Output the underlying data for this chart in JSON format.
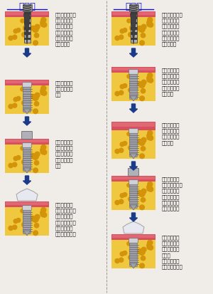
{
  "title_left": "１回法",
  "title_right": "２回法",
  "bg_color": "#f0ede8",
  "divider_color": "#999999",
  "title_color": "#1111cc",
  "arrow_color": "#1a3a8a",
  "bone_color": "#f0c840",
  "bone_spot_color": "#d4940a",
  "gum_color": "#d85060",
  "gum_top_color": "#e87880",
  "gum_bottom_color": "#c04050",
  "implant_color_mid": "#a0a0a8",
  "implant_color_light": "#d0d0d8",
  "implant_color_dark": "#707078",
  "drill_dark": "#404040",
  "drill_light": "#b0b0b0",
  "drill_top": "#888888",
  "cap_color": "#b0b0b8",
  "crown_color": "#e8e8f0",
  "crown_outline": "#aaaaaa",
  "skin_color": "#f0c880",
  "col1_texts": [
    "局所麻酔の後、\n専用のドリル\nでインプラン\nトと同じ長さ\nと太さの穴を\nあけます。",
    "インプラント\nを埋め込みま\nす。",
    "仮の蓋を取付\nけ、その部分\nを歯肉の上に\n出しておきま\nす。",
    "骨との結合が\n確認されたら、\n土台を取付け\n型を取ります。\n被せ物を装着\nし、終了です。"
  ],
  "col2_texts": [
    "局所麻酔の後、\n専用のドリル\nでインプラン\nトと同じ長さ\nと太さの穴を\nあけます。",
    "インプラント\nを埋め込みま\nす。ここまで\nは一回法と同\nじです。",
    "インプラント\nを完全に歯肉\nの下に埋没さ\nせます。",
    "骨との結合が\n確認されたら、\n小手術で歯肉\nを小さく切開\nし、仮の蓋を\n取付けます。",
    "歯肉の治癒を\n待ち土台を取\n付け型を取り\nます。\n被せ物を装着\nし、終了です。"
  ],
  "font_size_title": 9.5,
  "font_size_text": 5.0
}
